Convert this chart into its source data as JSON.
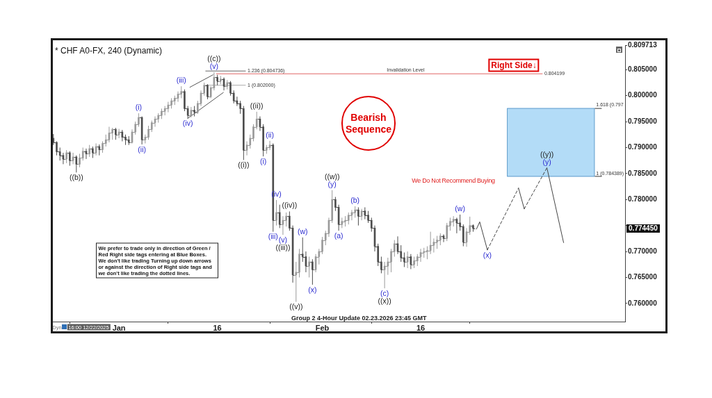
{
  "chart_data": {
    "type": "candlestick",
    "title": "* CHF A0-FX, 240 (Dynamic)",
    "x": [
      "2025-12-22T00:00",
      "2025-12-22T12:00",
      "2025-12-23T00:00",
      "2025-12-23T12:00",
      "2025-12-24T00:00",
      "2025-12-24T12:00",
      "2025-12-25T00:00",
      "2025-12-25T12:00",
      "2025-12-26T00:00",
      "2025-12-26T12:00",
      "2025-12-27T00:00",
      "2025-12-27T12:00",
      "2025-12-28T00:00",
      "2025-12-28T12:00",
      "2025-12-29T00:00",
      "2025-12-29T12:00",
      "2025-12-30T00:00",
      "2025-12-30T12:00",
      "2025-12-31T00:00",
      "2025-12-31T12:00",
      "2026-01-01T00:00",
      "2026-01-01T12:00",
      "2026-01-02T00:00",
      "2026-01-02T12:00",
      "2026-01-03T00:00",
      "2026-01-03T12:00",
      "2026-01-04T00:00",
      "2026-01-04T12:00",
      "2026-01-05T00:00",
      "2026-01-05T12:00",
      "2026-01-06T00:00",
      "2026-01-06T12:00",
      "2026-01-07T00:00",
      "2026-01-07T12:00",
      "2026-01-08T00:00",
      "2026-01-08T12:00",
      "2026-01-09T00:00",
      "2026-01-09T12:00",
      "2026-01-10T00:00",
      "2026-01-10T12:00",
      "2026-01-11T00:00",
      "2026-01-11T12:00",
      "2026-01-12T00:00",
      "2026-01-12T12:00",
      "2026-01-13T00:00",
      "2026-01-13T12:00",
      "2026-01-14T00:00",
      "2026-01-14T12:00",
      "2026-01-15T00:00",
      "2026-01-15T12:00",
      "2026-01-16T00:00",
      "2026-01-16T12:00",
      "2026-01-17T00:00",
      "2026-01-17T12:00",
      "2026-01-18T00:00",
      "2026-01-18T12:00",
      "2026-01-19T00:00",
      "2026-01-19T12:00",
      "2026-01-20T00:00",
      "2026-01-20T12:00",
      "2026-01-21T00:00",
      "2026-01-21T12:00",
      "2026-01-22T00:00",
      "2026-01-22T12:00",
      "2026-01-23T00:00",
      "2026-01-23T12:00",
      "2026-01-24T00:00",
      "2026-01-24T12:00",
      "2026-01-25T00:00",
      "2026-01-25T12:00",
      "2026-01-26T00:00",
      "2026-01-26T12:00",
      "2026-01-27T00:00",
      "2026-01-27T12:00",
      "2026-01-28T00:00",
      "2026-01-28T12:00",
      "2026-01-29T00:00",
      "2026-01-29T12:00",
      "2026-01-30T00:00",
      "2026-01-30T12:00",
      "2026-01-31T00:00",
      "2026-01-31T12:00",
      "2026-02-01T00:00",
      "2026-02-01T12:00",
      "2026-02-02T00:00",
      "2026-02-02T12:00",
      "2026-02-03T00:00",
      "2026-02-03T12:00",
      "2026-02-04T00:00",
      "2026-02-04T12:00",
      "2026-02-05T00:00",
      "2026-02-05T12:00",
      "2026-02-06T00:00",
      "2026-02-06T12:00",
      "2026-02-07T00:00",
      "2026-02-07T12:00",
      "2026-02-08T00:00",
      "2026-02-08T12:00",
      "2026-02-09T00:00",
      "2026-02-09T12:00",
      "2026-02-10T00:00",
      "2026-02-10T12:00",
      "2026-02-11T00:00",
      "2026-02-11T12:00",
      "2026-02-12T00:00",
      "2026-02-12T12:00",
      "2026-02-13T00:00",
      "2026-02-13T12:00",
      "2026-02-14T00:00",
      "2026-02-14T12:00",
      "2026-02-15T00:00",
      "2026-02-15T12:00",
      "2026-02-16T00:00",
      "2026-02-16T12:00",
      "2026-02-17T00:00",
      "2026-02-17T12:00",
      "2026-02-18T00:00",
      "2026-02-18T12:00",
      "2026-02-19T00:00",
      "2026-02-19T12:00",
      "2026-02-20T00:00",
      "2026-02-20T12:00",
      "2026-02-21T00:00",
      "2026-02-21T12:00",
      "2026-02-22T00:00",
      "2026-02-22T12:00",
      "2026-02-23T00:00",
      "2026-02-23T12:00",
      "2026-02-24T00:00"
    ],
    "ohlc": [
      [
        0.7918,
        0.7926,
        0.7905,
        0.791
      ],
      [
        0.791,
        0.7912,
        0.7885,
        0.7892
      ],
      [
        0.7892,
        0.79,
        0.7875,
        0.7885
      ],
      [
        0.7885,
        0.789,
        0.7868,
        0.7878
      ],
      [
        0.7878,
        0.7895,
        0.787,
        0.789
      ],
      [
        0.789,
        0.7893,
        0.7865,
        0.7875
      ],
      [
        0.7875,
        0.789,
        0.7868,
        0.7882
      ],
      [
        0.7882,
        0.7885,
        0.7852,
        0.7868
      ],
      [
        0.7868,
        0.7888,
        0.7862,
        0.788
      ],
      [
        0.788,
        0.79,
        0.7875,
        0.7893
      ],
      [
        0.7893,
        0.7898,
        0.7878,
        0.7888
      ],
      [
        0.7888,
        0.7905,
        0.7882,
        0.7898
      ],
      [
        0.7898,
        0.7902,
        0.788,
        0.789
      ],
      [
        0.789,
        0.7908,
        0.7885,
        0.7902
      ],
      [
        0.7902,
        0.7906,
        0.7885,
        0.7896
      ],
      [
        0.7896,
        0.7912,
        0.789,
        0.7908
      ],
      [
        0.7908,
        0.7925,
        0.7902,
        0.7915
      ],
      [
        0.7915,
        0.794,
        0.791,
        0.7928
      ],
      [
        0.7928,
        0.7938,
        0.7915,
        0.7935
      ],
      [
        0.7935,
        0.7938,
        0.7915,
        0.7925
      ],
      [
        0.7925,
        0.7936,
        0.7918,
        0.793
      ],
      [
        0.793,
        0.7934,
        0.7912,
        0.792
      ],
      [
        0.792,
        0.7925,
        0.7905,
        0.7915
      ],
      [
        0.7915,
        0.7922,
        0.7905,
        0.791
      ],
      [
        0.791,
        0.7935,
        0.7908,
        0.793
      ],
      [
        0.793,
        0.795,
        0.7925,
        0.7945
      ],
      [
        0.7945,
        0.7966,
        0.794,
        0.7958
      ],
      [
        0.7958,
        0.796,
        0.7906,
        0.7915
      ],
      [
        0.7915,
        0.7925,
        0.7908,
        0.792
      ],
      [
        0.792,
        0.7942,
        0.7915,
        0.7935
      ],
      [
        0.7935,
        0.7952,
        0.793,
        0.7948
      ],
      [
        0.7948,
        0.796,
        0.794,
        0.7955
      ],
      [
        0.7955,
        0.7966,
        0.7948,
        0.7962
      ],
      [
        0.7962,
        0.7975,
        0.7955,
        0.797
      ],
      [
        0.797,
        0.798,
        0.7962,
        0.7975
      ],
      [
        0.7975,
        0.7988,
        0.7968,
        0.7982
      ],
      [
        0.7982,
        0.7995,
        0.7975,
        0.799
      ],
      [
        0.799,
        0.8,
        0.7982,
        0.7995
      ],
      [
        0.7995,
        0.8008,
        0.7988,
        0.8003
      ],
      [
        0.8003,
        0.8018,
        0.7995,
        0.8008
      ],
      [
        0.8008,
        0.8012,
        0.797,
        0.7975
      ],
      [
        0.7975,
        0.798,
        0.7956,
        0.7962
      ],
      [
        0.7962,
        0.7978,
        0.7958,
        0.7972
      ],
      [
        0.7972,
        0.798,
        0.796,
        0.7968
      ],
      [
        0.7968,
        0.799,
        0.7965,
        0.7985
      ],
      [
        0.7985,
        0.801,
        0.798,
        0.8005
      ],
      [
        0.8005,
        0.8025,
        0.8,
        0.802
      ],
      [
        0.802,
        0.8022,
        0.7993,
        0.7998
      ],
      [
        0.7998,
        0.8018,
        0.7995,
        0.8015
      ],
      [
        0.8015,
        0.8045,
        0.801,
        0.8035
      ],
      [
        0.8035,
        0.804,
        0.802,
        0.8028
      ],
      [
        0.8028,
        0.8038,
        0.8022,
        0.8032
      ],
      [
        0.8032,
        0.8035,
        0.801,
        0.8018
      ],
      [
        0.8018,
        0.803,
        0.8012,
        0.8025
      ],
      [
        0.8025,
        0.8028,
        0.8,
        0.8005
      ],
      [
        0.8005,
        0.801,
        0.7985,
        0.799
      ],
      [
        0.799,
        0.7998,
        0.798,
        0.7985
      ],
      [
        0.7985,
        0.799,
        0.7965,
        0.7975
      ],
      [
        0.7975,
        0.798,
        0.7876,
        0.7895
      ],
      [
        0.7895,
        0.7912,
        0.7885,
        0.7905
      ],
      [
        0.7905,
        0.7925,
        0.7898,
        0.7918
      ],
      [
        0.7918,
        0.7945,
        0.7912,
        0.794
      ],
      [
        0.794,
        0.7969,
        0.7935,
        0.7955
      ],
      [
        0.7955,
        0.796,
        0.7932,
        0.794
      ],
      [
        0.794,
        0.7945,
        0.7883,
        0.7895
      ],
      [
        0.7895,
        0.7905,
        0.7888,
        0.79
      ],
      [
        0.79,
        0.7913,
        0.7895,
        0.7905
      ],
      [
        0.7905,
        0.7908,
        0.7738,
        0.776
      ],
      [
        0.776,
        0.7799,
        0.775,
        0.7775
      ],
      [
        0.7775,
        0.779,
        0.7745,
        0.7752
      ],
      [
        0.7752,
        0.7768,
        0.7732,
        0.776
      ],
      [
        0.776,
        0.7775,
        0.7748,
        0.7768
      ],
      [
        0.7768,
        0.7777,
        0.774,
        0.7745
      ],
      [
        0.7745,
        0.775,
        0.764,
        0.7655
      ],
      [
        0.7655,
        0.768,
        0.7603,
        0.766
      ],
      [
        0.766,
        0.7705,
        0.765,
        0.7695
      ],
      [
        0.7695,
        0.7727,
        0.768,
        0.769
      ],
      [
        0.769,
        0.77,
        0.766,
        0.7672
      ],
      [
        0.7672,
        0.769,
        0.765,
        0.768
      ],
      [
        0.768,
        0.7685,
        0.7636,
        0.7665
      ],
      [
        0.7665,
        0.7695,
        0.766,
        0.769
      ],
      [
        0.769,
        0.7705,
        0.7675,
        0.77
      ],
      [
        0.77,
        0.7728,
        0.7695,
        0.7722
      ],
      [
        0.7722,
        0.774,
        0.7712,
        0.7735
      ],
      [
        0.7735,
        0.7765,
        0.7728,
        0.776
      ],
      [
        0.776,
        0.7818,
        0.7755,
        0.78
      ],
      [
        0.78,
        0.7805,
        0.7778,
        0.7785
      ],
      [
        0.7785,
        0.779,
        0.774,
        0.7752
      ],
      [
        0.7752,
        0.7765,
        0.7745,
        0.7758
      ],
      [
        0.7758,
        0.7768,
        0.7748,
        0.776
      ],
      [
        0.776,
        0.7775,
        0.7752,
        0.777
      ],
      [
        0.777,
        0.778,
        0.776,
        0.7775
      ],
      [
        0.7775,
        0.7787,
        0.7765,
        0.778
      ],
      [
        0.778,
        0.7785,
        0.775,
        0.7768
      ],
      [
        0.7768,
        0.7782,
        0.776,
        0.7778
      ],
      [
        0.7778,
        0.7785,
        0.7762,
        0.777
      ],
      [
        0.777,
        0.7778,
        0.7755,
        0.776
      ],
      [
        0.776,
        0.7765,
        0.7738,
        0.7745
      ],
      [
        0.7745,
        0.775,
        0.77,
        0.771
      ],
      [
        0.771,
        0.7715,
        0.7672,
        0.768
      ],
      [
        0.768,
        0.769,
        0.7658,
        0.7665
      ],
      [
        0.7665,
        0.768,
        0.7629,
        0.7672
      ],
      [
        0.7672,
        0.7688,
        0.7655,
        0.768
      ],
      [
        0.768,
        0.7705,
        0.766,
        0.77
      ],
      [
        0.77,
        0.7722,
        0.769,
        0.7715
      ],
      [
        0.7715,
        0.7729,
        0.7695,
        0.77
      ],
      [
        0.77,
        0.7712,
        0.768,
        0.7688
      ],
      [
        0.7688,
        0.7698,
        0.767,
        0.768
      ],
      [
        0.768,
        0.77,
        0.7668,
        0.769
      ],
      [
        0.769,
        0.7695,
        0.7666,
        0.7675
      ],
      [
        0.7675,
        0.769,
        0.7668,
        0.7682
      ],
      [
        0.7682,
        0.7695,
        0.7672,
        0.769
      ],
      [
        0.769,
        0.7705,
        0.768,
        0.7698
      ],
      [
        0.7698,
        0.7707,
        0.7688,
        0.77
      ],
      [
        0.77,
        0.771,
        0.7685,
        0.7702
      ],
      [
        0.7702,
        0.7738,
        0.7695,
        0.7712
      ],
      [
        0.7712,
        0.7725,
        0.7698,
        0.7718
      ],
      [
        0.7718,
        0.773,
        0.7705,
        0.7722
      ],
      [
        0.7722,
        0.7735,
        0.7712,
        0.773
      ],
      [
        0.773,
        0.7733,
        0.7718,
        0.7725
      ],
      [
        0.7725,
        0.7755,
        0.772,
        0.775
      ],
      [
        0.775,
        0.7765,
        0.774,
        0.7758
      ],
      [
        0.7758,
        0.7768,
        0.7748,
        0.7762
      ],
      [
        0.7762,
        0.7765,
        0.7735,
        0.7755
      ],
      [
        0.7755,
        0.7771,
        0.774,
        0.7748
      ],
      [
        0.7748,
        0.7752,
        0.771,
        0.7718
      ],
      [
        0.7718,
        0.7745,
        0.7709,
        0.7738
      ],
      [
        0.7738,
        0.7767,
        0.7732,
        0.775
      ],
      [
        0.775,
        0.7752,
        0.7738,
        0.77445
      ]
    ],
    "colors": [
      "#4d4d4d",
      "#4d4d4d",
      "#4d4d4d",
      "#4d4d4d",
      "#9a9a9a",
      "#4d4d4d",
      "#9a9a9a",
      "#4d4d4d",
      "#9a9a9a",
      "#9a9a9a",
      "#4d4d4d",
      "#9a9a9a",
      "#4d4d4d",
      "#9a9a9a",
      "#4d4d4d",
      "#9a9a9a",
      "#9a9a9a",
      "#9a9a9a",
      "#9a9a9a",
      "#4d4d4d",
      "#9a9a9a",
      "#4d4d4d",
      "#4d4d4d",
      "#4d4d4d",
      "#9a9a9a",
      "#9a9a9a",
      "#9a9a9a",
      "#4d4d4d",
      "#9a9a9a",
      "#9a9a9a",
      "#9a9a9a",
      "#9a9a9a",
      "#9a9a9a",
      "#9a9a9a",
      "#9a9a9a",
      "#9a9a9a",
      "#9a9a9a",
      "#9a9a9a",
      "#9a9a9a",
      "#9a9a9a",
      "#4d4d4d",
      "#4d4d4d",
      "#9a9a9a",
      "#4d4d4d",
      "#9a9a9a",
      "#9a9a9a",
      "#9a9a9a",
      "#4d4d4d",
      "#9a9a9a",
      "#9a9a9a",
      "#4d4d4d",
      "#9a9a9a",
      "#4d4d4d",
      "#9a9a9a",
      "#4d4d4d",
      "#4d4d4d",
      "#4d4d4d",
      "#4d4d4d",
      "#4d4d4d",
      "#9a9a9a",
      "#9a9a9a",
      "#9a9a9a",
      "#9a9a9a",
      "#4d4d4d",
      "#4d4d4d",
      "#9a9a9a",
      "#9a9a9a",
      "#4d4d4d",
      "#9a9a9a",
      "#4d4d4d",
      "#9a9a9a",
      "#9a9a9a",
      "#4d4d4d",
      "#4d4d4d",
      "#9a9a9a",
      "#9a9a9a",
      "#4d4d4d",
      "#4d4d4d",
      "#9a9a9a",
      "#4d4d4d",
      "#9a9a9a",
      "#9a9a9a",
      "#9a9a9a",
      "#9a9a9a",
      "#9a9a9a",
      "#9a9a9a",
      "#4d4d4d",
      "#4d4d4d",
      "#9a9a9a",
      "#9a9a9a",
      "#9a9a9a",
      "#9a9a9a",
      "#9a9a9a",
      "#4d4d4d",
      "#9a9a9a",
      "#4d4d4d",
      "#4d4d4d",
      "#4d4d4d",
      "#4d4d4d",
      "#4d4d4d",
      "#4d4d4d",
      "#9a9a9a",
      "#9a9a9a",
      "#9a9a9a",
      "#9a9a9a",
      "#4d4d4d",
      "#4d4d4d",
      "#4d4d4d",
      "#9a9a9a",
      "#4d4d4d",
      "#9a9a9a",
      "#9a9a9a",
      "#9a9a9a",
      "#9a9a9a",
      "#9a9a9a",
      "#9a9a9a",
      "#9a9a9a",
      "#9a9a9a",
      "#9a9a9a",
      "#4d4d4d",
      "#9a9a9a",
      "#9a9a9a",
      "#9a9a9a",
      "#4d4d4d",
      "#4d4d4d",
      "#4d4d4d",
      "#9a9a9a",
      "#9a9a9a",
      "#4d4d4d"
    ],
    "series": [
      {
        "type": "line",
        "x": [
          "2026-01-15T20:00",
          "2026-03-06T13:00"
        ],
        "values": [
          0.804199,
          0.804199
        ],
        "color": "#e06666"
      },
      {
        "type": "line",
        "x": [
          "2026-01-14T05:00",
          "2026-01-20T07:00"
        ],
        "values": [
          0.804736,
          0.804736
        ],
        "color": "#666666"
      },
      {
        "type": "line",
        "x": [
          "2026-01-14T05:00",
          "2026-01-20T07:00"
        ],
        "values": [
          0.802,
          0.802
        ],
        "color": "#aaaaaa"
      },
      {
        "type": "line",
        "x": [
          "2026-01-11T19:00",
          "2026-01-15T08:00"
        ],
        "values": [
          0.8016,
          0.804
        ],
        "color": "#555555"
      },
      {
        "type": "line",
        "x": [
          "2026-01-11T11:00",
          "2026-01-16T22:00"
        ],
        "values": [
          0.7956,
          0.8006
        ],
        "color": "#555555"
      },
      {
        "type": "line",
        "x": [
          "2026-02-24T12:00",
          "2026-02-25T00:00",
          "2026-02-26T04:00"
        ],
        "values": [
          0.7743,
          0.7757,
          0.7703
        ],
        "color": "#444444"
      },
      {
        "type": "line",
        "x": [
          "2026-02-26T04:00",
          "2026-03-02T22:00"
        ],
        "values": [
          0.7703,
          0.7822
        ],
        "color": "#444444",
        "line_style": "dashed"
      },
      {
        "type": "line",
        "x": [
          "2026-03-02T22:00",
          "2026-03-03T19:00"
        ],
        "values": [
          0.7822,
          0.7782
        ],
        "color": "#444444"
      },
      {
        "type": "line",
        "x": [
          "2026-03-03T19:00",
          "2026-03-07T06:00"
        ],
        "values": [
          0.7782,
          0.7861
        ],
        "color": "#444444",
        "line_style": "dashed"
      },
      {
        "type": "line",
        "x": [
          "2026-03-07T06:00",
          "2026-03-09T19:00"
        ],
        "values": [
          0.7861,
          0.7717
        ],
        "color": "#444444"
      }
    ],
    "xlim": [
      "2025-12-21T22:00",
      "2026-03-19T04:00"
    ],
    "xticks": [
      {
        "value": "2026-01-01",
        "label": "Jan"
      },
      {
        "value": "2026-01-16",
        "label": "16"
      },
      {
        "value": "2026-02-01",
        "label": "Feb"
      },
      {
        "value": "2026-02-16",
        "label": "16"
      }
    ],
    "ylim": [
      0.7565,
      0.809713
    ],
    "yticks": [
      {
        "value": 0.76,
        "label": "0.760000"
      },
      {
        "value": 0.765,
        "label": "0.765000"
      },
      {
        "value": 0.77,
        "label": "0.770000"
      },
      {
        "value": 0.775,
        "label": null
      },
      {
        "value": 0.78,
        "label": "0.780000"
      },
      {
        "value": 0.785,
        "label": "0.785000"
      },
      {
        "value": 0.79,
        "label": "0.790000"
      },
      {
        "value": 0.795,
        "label": "0.795000"
      },
      {
        "value": 0.8,
        "label": "0.800000"
      },
      {
        "value": 0.805,
        "label": "0.805000"
      },
      {
        "value": 0.809713,
        "label": "0.809713"
      }
    ],
    "bands": [
      {
        "axis": "y",
        "from": 0.784389,
        "to": 0.7976,
        "color": "#b3dcf7"
      }
    ],
    "annotations": [
      {
        "text": "((b))",
        "x": "2025-12-25T12:00",
        "y": 0.7852
      },
      {
        "text": "(i)",
        "x": "2026-01-04T00:00",
        "y": 0.7966
      },
      {
        "text": "(ii)",
        "x": "2026-01-04T12:00",
        "y": 0.7906
      },
      {
        "text": "(iii)",
        "x": "2026-01-10T12:00",
        "y": 0.8018
      },
      {
        "text": "(iv)",
        "x": "2026-01-11T12:00",
        "y": 0.7956
      },
      {
        "text": "(v)",
        "x": "2026-01-15T12:00",
        "y": 0.8045
      },
      {
        "text": "((c))",
        "x": "2026-01-15T12:00",
        "y": 0.8045
      },
      {
        "text": "((i))",
        "x": "2026-01-20T00:00",
        "y": 0.7876
      },
      {
        "text": "((ii))",
        "x": "2026-01-22T00:00",
        "y": 0.7969
      },
      {
        "text": "(i)",
        "x": "2026-01-23T00:00",
        "y": 0.7883
      },
      {
        "text": "(ii)",
        "x": "2026-01-24T00:00",
        "y": 0.7913
      },
      {
        "text": "(iii)",
        "x": "2026-01-24T12:00",
        "y": 0.7738
      },
      {
        "text": "(iv)",
        "x": "2026-01-25T00:00",
        "y": 0.7799
      },
      {
        "text": "(v)",
        "x": "2026-01-26T00:00",
        "y": 0.7732
      },
      {
        "text": "((iii))",
        "x": "2026-01-26T00:00",
        "y": 0.7732
      },
      {
        "text": "((iv))",
        "x": "2026-01-27T00:00",
        "y": 0.7777
      },
      {
        "text": "((v))",
        "x": "2026-01-28T00:00",
        "y": 0.7603
      },
      {
        "text": "(w)",
        "x": "2026-01-29T00:00",
        "y": 0.7727
      },
      {
        "text": "(x)",
        "x": "2026-01-30T12:00",
        "y": 0.7636
      },
      {
        "text": "(y)",
        "x": "2026-02-02T12:00",
        "y": 0.7818
      },
      {
        "text": "((w))",
        "x": "2026-02-02T12:00",
        "y": 0.7818
      },
      {
        "text": "(a)",
        "x": "2026-02-03T12:00",
        "y": 0.774
      },
      {
        "text": "(b)",
        "x": "2026-02-06T00:00",
        "y": 0.7787
      },
      {
        "text": "(c)",
        "x": "2026-02-10T12:00",
        "y": 0.7629
      },
      {
        "text": "((x))",
        "x": "2026-02-10T12:00",
        "y": 0.7629
      },
      {
        "text": "(w)",
        "x": "2026-02-22T00:00",
        "y": 0.7771
      },
      {
        "text": "(x)",
        "x": "2026-02-26T04:00",
        "y": 0.7703
      },
      {
        "text": "(y)",
        "x": "2026-03-07T06:00",
        "y": 0.7861
      },
      {
        "text": "((y))",
        "x": "2026-03-07T06:00",
        "y": 0.7861
      },
      {
        "text": "1.236 (0.804736)",
        "x": "2026-01-20T07:00",
        "y": 0.804736
      },
      {
        "text": "1 (0.802000)",
        "x": "2026-01-20T07:00",
        "y": 0.802
      },
      {
        "text": "Invalidation Level",
        "x": "2026-02-13T17:00",
        "y": 0.804199
      },
      {
        "text": "0.804199",
        "x": "2026-03-06T13:00",
        "y": 0.804199
      },
      {
        "text": "1.618 (0.797",
        "x": "2026-03-14T18:00",
        "y": 0.7976
      },
      {
        "text": "1 (0.784389)",
        "x": "2026-03-14T18:00",
        "y": 0.784389
      },
      "Bearish Sequence",
      "Right Side↓",
      "We Do Not Recommend Buying",
      "We prefer to trade only in direction of Green / Red Right side tags entering at Blue Boxes. We don't like trading Turning up down arrows or against the direction of Right side tags and we don't like trading the dotted lines.",
      "Group 2 4-Hour Update 02.23.2026 23:45 GMT",
      "Dyn",
      "16:00 12/22/2025",
      "0.774450"
    ]
  }
}
